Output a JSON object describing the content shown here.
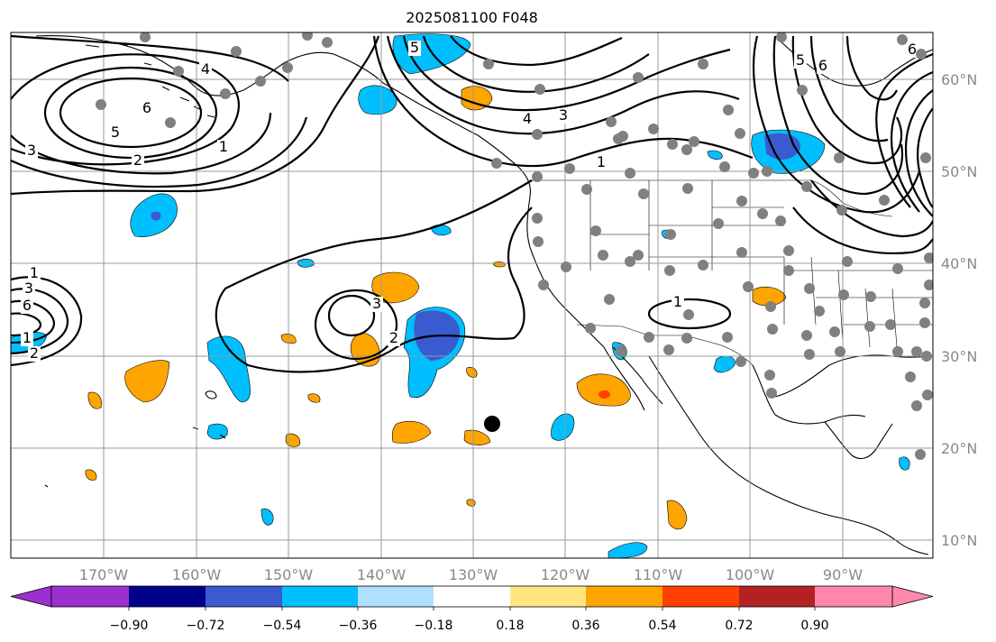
{
  "title": "2025081100 F048",
  "map": {
    "lon_labels": [
      "170°W",
      "160°W",
      "150°W",
      "140°W",
      "130°W",
      "120°W",
      "110°W",
      "100°W",
      "90°W"
    ],
    "lat_labels": [
      "60°N",
      "50°N",
      "40°N",
      "30°N",
      "20°N",
      "10°N"
    ],
    "contour_labels": [
      "4",
      "6",
      "5",
      "3",
      "2",
      "1",
      "4",
      "3",
      "5",
      "6",
      "1",
      "1",
      "3",
      "6",
      "1",
      "2",
      "3",
      "2",
      "1",
      "5",
      "6"
    ]
  },
  "colorbar": {
    "ticks": [
      "−0.90",
      "−0.72",
      "−0.54",
      "−0.36",
      "−0.18",
      "0.18",
      "0.36",
      "0.54",
      "0.72",
      "0.90"
    ],
    "colors": [
      "#9b30d0",
      "#00008b",
      "#3a5bd0",
      "#00bfff",
      "#b0e0ff",
      "#ffffff",
      "#ffe680",
      "#ffa500",
      "#ff4000",
      "#b22222",
      "#ff88aa"
    ]
  }
}
